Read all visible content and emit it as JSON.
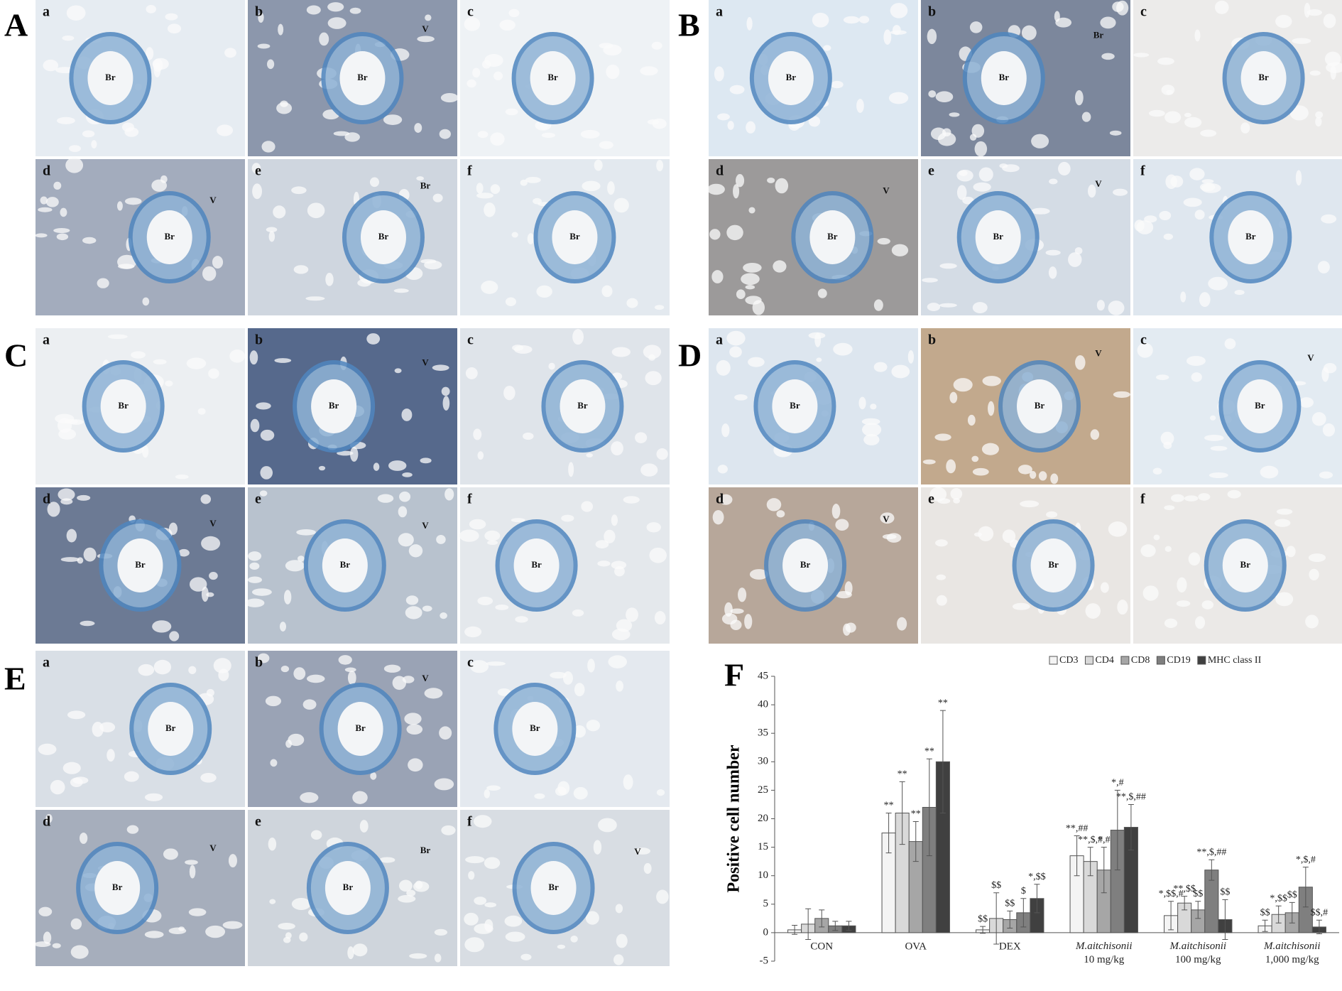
{
  "panels": [
    {
      "label": "A",
      "images": [
        {
          "label": "a",
          "marks": [
            "Br"
          ]
        },
        {
          "label": "b",
          "marks": [
            "Br",
            "V"
          ]
        },
        {
          "label": "c",
          "marks": [
            "Br"
          ]
        },
        {
          "label": "d",
          "marks": [
            "Br",
            "V"
          ]
        },
        {
          "label": "e",
          "marks": [
            "Br",
            "Br"
          ]
        },
        {
          "label": "f",
          "marks": [
            "Br"
          ]
        }
      ]
    },
    {
      "label": "B",
      "images": [
        {
          "label": "a",
          "marks": [
            "Br"
          ]
        },
        {
          "label": "b",
          "marks": [
            "Br",
            "Br"
          ]
        },
        {
          "label": "c",
          "marks": [
            "Br"
          ]
        },
        {
          "label": "d",
          "marks": [
            "Br",
            "V"
          ]
        },
        {
          "label": "e",
          "marks": [
            "Br",
            "V"
          ]
        },
        {
          "label": "f",
          "marks": [
            "Br"
          ]
        }
      ]
    },
    {
      "label": "C",
      "images": [
        {
          "label": "a",
          "marks": [
            "Br"
          ]
        },
        {
          "label": "b",
          "marks": [
            "Br",
            "V"
          ]
        },
        {
          "label": "c",
          "marks": [
            "Br"
          ]
        },
        {
          "label": "d",
          "marks": [
            "Br",
            "V"
          ]
        },
        {
          "label": "e",
          "marks": [
            "Br",
            "V"
          ]
        },
        {
          "label": "f",
          "marks": [
            "Br"
          ]
        }
      ]
    },
    {
      "label": "D",
      "images": [
        {
          "label": "a",
          "marks": [
            "Br"
          ]
        },
        {
          "label": "b",
          "marks": [
            "Br",
            "V"
          ]
        },
        {
          "label": "c",
          "marks": [
            "Br",
            "V"
          ]
        },
        {
          "label": "d",
          "marks": [
            "Br",
            "V"
          ]
        },
        {
          "label": "e",
          "marks": [
            "Br"
          ]
        },
        {
          "label": "f",
          "marks": [
            "Br"
          ]
        }
      ]
    },
    {
      "label": "E",
      "images": [
        {
          "label": "a",
          "marks": [
            "Br"
          ]
        },
        {
          "label": "b",
          "marks": [
            "Br",
            "V"
          ]
        },
        {
          "label": "c",
          "marks": [
            "Br"
          ]
        },
        {
          "label": "d",
          "marks": [
            "Br",
            "V"
          ]
        },
        {
          "label": "e",
          "marks": [
            "Br",
            "Br"
          ]
        },
        {
          "label": "f",
          "marks": [
            "Br",
            "V"
          ]
        }
      ]
    }
  ],
  "chart_data": {
    "type": "bar",
    "panel_label": "F",
    "y_label": "Positive cell number",
    "categories": [
      "CON",
      "OVA",
      "DEX",
      "M.aitchisonii\n10 mg/kg",
      "M.aitchisonii\n100 mg/kg",
      "M.aitchisonii\n1,000 mg/kg"
    ],
    "ylim": [
      -5,
      45
    ],
    "yticks": [
      -5,
      0,
      5,
      10,
      15,
      20,
      25,
      30,
      35,
      40,
      45
    ],
    "legend": "top-right",
    "series": [
      {
        "name": "CD3",
        "color": "#f4f4f4",
        "values": [
          0.5,
          17.5,
          0.5,
          13.5,
          3,
          1.2
        ],
        "errors": [
          0.8,
          3.5,
          0.6,
          3.5,
          2.5,
          1
        ],
        "annotations": [
          null,
          "**",
          "$$",
          "**,##",
          "*,$$,#",
          "$$"
        ]
      },
      {
        "name": "CD4",
        "color": "#d9d9d9",
        "values": [
          1.5,
          21,
          2.5,
          12.5,
          5.2,
          3.2
        ],
        "errors": [
          2.7,
          5.5,
          4.5,
          2.5,
          1.2,
          1.5
        ],
        "annotations": [
          null,
          "**",
          "$$",
          "**,$,#",
          "**,$$",
          "*,$$"
        ]
      },
      {
        "name": "CD8",
        "color": "#a6a6a6",
        "values": [
          2.5,
          16,
          2.3,
          11,
          4,
          3.5
        ],
        "errors": [
          1.5,
          3.5,
          1.5,
          4,
          1.5,
          1.8
        ],
        "annotations": [
          null,
          "**",
          "$$",
          "*,#",
          "$$",
          "$$"
        ]
      },
      {
        "name": "CD19",
        "color": "#7f7f7f",
        "values": [
          1.2,
          22,
          3.5,
          18,
          11,
          8
        ],
        "errors": [
          0.8,
          8.5,
          2.5,
          7,
          1.8,
          3.5
        ],
        "annotations": [
          null,
          "**",
          "$",
          "*,#",
          "**,$,##",
          "*,$,#"
        ]
      },
      {
        "name": "MHC class II",
        "color": "#404040",
        "values": [
          1.2,
          30,
          6,
          18.5,
          2.3,
          1
        ],
        "errors": [
          0.8,
          9,
          2.5,
          4,
          3.5,
          1.2
        ],
        "annotations": [
          null,
          "**",
          "*,$$",
          "**,$,##",
          "$$",
          "$$,#"
        ]
      }
    ]
  }
}
